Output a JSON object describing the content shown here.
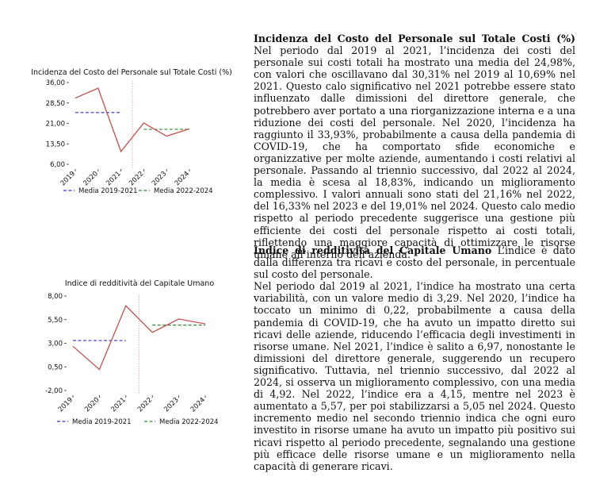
{
  "chart_data": [
    {
      "type": "line",
      "title": "Incidenza del Costo del Personale sul Totale Costi (%)",
      "x": [
        "2019",
        "2020",
        "2021",
        "2022",
        "2023",
        "2024"
      ],
      "series": [
        {
          "values": [
            30.31,
            33.93,
            10.69,
            21.16,
            16.33,
            19.01
          ],
          "color": "#c0504d"
        }
      ],
      "y_ticks": [
        "36,00",
        "28,50",
        "21,00",
        "13,50",
        "6,00"
      ],
      "ylim": [
        6,
        36
      ],
      "averages": [
        {
          "name": "Media 2019-2021",
          "value": 24.98,
          "from": "2019",
          "to": "2021",
          "color": "#3333cc"
        },
        {
          "name": "Media 2022-2024",
          "value": 18.83,
          "from": "2022",
          "to": "2024",
          "color": "#338833"
        }
      ],
      "separator_between": [
        "2021",
        "2022"
      ],
      "legend": "bottom"
    },
    {
      "type": "line",
      "title": "Indice di redditività del Capitale Umano",
      "x": [
        "2019",
        "2020",
        "2021",
        "2022",
        "2023",
        "2024"
      ],
      "series": [
        {
          "values": [
            2.68,
            0.22,
            6.97,
            4.15,
            5.57,
            5.05
          ],
          "color": "#c0504d"
        }
      ],
      "y_ticks": [
        "8,00",
        "5,50",
        "3,00",
        "0,50",
        "-2,00"
      ],
      "ylim": [
        -2,
        8
      ],
      "averages": [
        {
          "name": "Media 2019-2021",
          "value": 3.29,
          "from": "2019",
          "to": "2021",
          "color": "#3333cc"
        },
        {
          "name": "Media 2022-2024",
          "value": 4.92,
          "from": "2022",
          "to": "2024",
          "color": "#338833"
        }
      ],
      "separator_between": [
        "2021",
        "2022"
      ],
      "legend": "bottom"
    }
  ],
  "section1": {
    "heading": "Incidenza del Costo del Personale sul Totale Costi (%)",
    "body": " Nel periodo dal 2019 al 2021, l’incidenza dei costi del personale sui costi totali ha mostrato una media del 24,98%, con valori che oscillavano dal 30,31% nel 2019 al 10,69% nel 2021. Questo calo significativo nel 2021 potrebbe essere stato influenzato dalle dimissioni del direttore generale, che potrebbero aver portato a una riorganizzazione interna e a una riduzione dei costi del personale. Nel 2020, l’incidenza ha raggiunto il 33,93%, probabilmente a causa della pandemia di COVID-19, che ha comportato sfide economiche e organizzative per molte aziende, aumentando i costi relativi al personale. Passando al triennio successivo, dal 2022 al 2024, la media è scesa al 18,83%, indicando un miglioramento complessivo. I valori annuali sono stati del 21,16% nel 2022, del 16,33% nel 2023 e del 19,01% nel 2024. Questo calo medio rispetto al periodo precedente suggerisce una gestione più efficiente dei costi del personale rispetto ai costi totali, riflettendo una maggiore capacità di ottimizzare le risorse umane all’interno dell’azienda."
  },
  "section2": {
    "heading": "Indice di redditività del Capitale Umano",
    "body": " L’indice è dato dalla differenza tra ricavi e costo del personale, in percentuale sul costo del personale.",
    "body2": "Nel periodo dal 2019 al 2021, l’indice ha mostrato una certa variabilità, con un valore medio di 3,29. Nel 2020, l’indice ha toccato un minimo di 0,22, probabilmente a causa della pandemia di COVID-19, che ha avuto un impatto diretto sui ricavi delle aziende, riducendo l’efficacia degli investimenti in risorse umane. Nel 2021, l’indice è salito a 6,97, nonostante le dimissioni del direttore generale, suggerendo un recupero significativo. Tuttavia, nel triennio successivo, dal 2022 al 2024, si osserva un miglioramento complessivo, con una media di 4,92. Nel 2022, l’indice era a 4,15, mentre nel 2023 è aumentato a 5,57, per poi stabilizzarsi a 5,05 nel 2024. Questo incremento medio nel secondo triennio indica che ogni euro investito in risorse umane ha avuto un impatto più positivo sui ricavi rispetto al periodo precedente, segnalando una gestione più efficace delle risorse umane e un miglioramento nella capacità di generare ricavi."
  }
}
